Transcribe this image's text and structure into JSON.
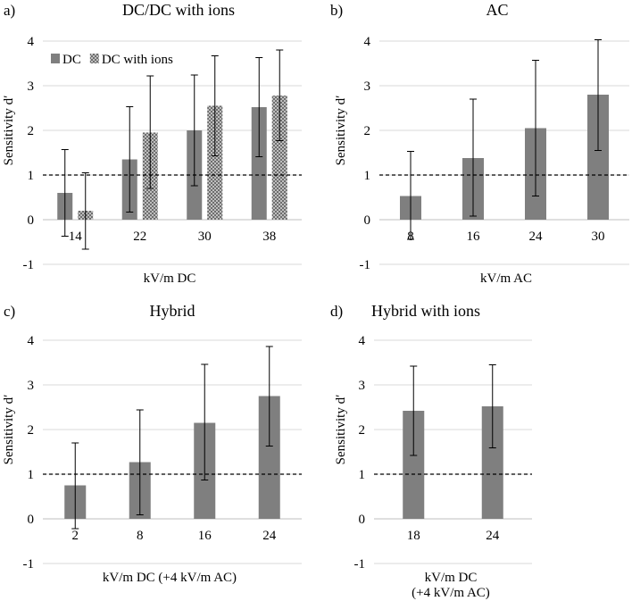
{
  "colors": {
    "bar": "#7f7f7f",
    "grid": "#d9d9d9",
    "errorbar": "#000000",
    "reference": "#000000",
    "pattern_dot": "#333333"
  },
  "chart_data": [
    {
      "id": "a",
      "letter": "a)",
      "type": "bar",
      "title": "DC/DC with ions",
      "xlabel": "kV/m DC",
      "ylabel": "Sensitivity d′",
      "categories": [
        "14",
        "22",
        "30",
        "38"
      ],
      "ylim": [
        -1,
        4
      ],
      "yticks": [
        "-1",
        "0",
        "1",
        "2",
        "3",
        "4"
      ],
      "reference_line": 1,
      "legend_position": "top-left",
      "series": [
        {
          "name": "DC",
          "pattern": "solid",
          "values": [
            0.6,
            1.35,
            2.0,
            2.52
          ],
          "err_low": [
            -0.37,
            0.17,
            0.76,
            1.41
          ],
          "err_high": [
            1.57,
            2.53,
            3.24,
            3.63
          ]
        },
        {
          "name": "DC with ions",
          "pattern": "dots",
          "values": [
            0.2,
            1.95,
            2.55,
            2.78
          ],
          "err_low": [
            -0.66,
            0.7,
            1.43,
            1.77
          ],
          "err_high": [
            1.05,
            3.22,
            3.67,
            3.8
          ]
        }
      ]
    },
    {
      "id": "b",
      "letter": "b)",
      "type": "bar",
      "title": "AC",
      "xlabel": "kV/m AC",
      "ylabel": "Sensitivity d′",
      "categories": [
        "8",
        "16",
        "24",
        "30"
      ],
      "ylim": [
        -1,
        4
      ],
      "yticks": [
        "-1",
        "0",
        "1",
        "2",
        "3",
        "4"
      ],
      "reference_line": 1,
      "series": [
        {
          "name": "AC",
          "pattern": "solid",
          "values": [
            0.53,
            1.38,
            2.05,
            2.8
          ],
          "err_low": [
            -0.44,
            0.08,
            0.53,
            1.55
          ],
          "err_high": [
            1.53,
            2.7,
            3.57,
            4.03
          ]
        }
      ]
    },
    {
      "id": "c",
      "letter": "c)",
      "type": "bar",
      "title": "Hybrid",
      "xlabel": "kV/m DC (+4 kV/m AC)",
      "ylabel": "Sensitivity d′",
      "categories": [
        "2",
        "8",
        "16",
        "24"
      ],
      "ylim": [
        -1,
        4
      ],
      "yticks": [
        "-1",
        "0",
        "1",
        "2",
        "3",
        "4"
      ],
      "reference_line": 1,
      "series": [
        {
          "name": "Hybrid",
          "pattern": "solid",
          "values": [
            0.75,
            1.27,
            2.15,
            2.75
          ],
          "err_low": [
            -0.22,
            0.09,
            0.87,
            1.63
          ],
          "err_high": [
            1.7,
            2.44,
            3.46,
            3.86
          ]
        }
      ]
    },
    {
      "id": "d",
      "letter": "d)",
      "type": "bar",
      "title": "Hybrid with ions",
      "xlabel": "kV/m DC (+4 kV/m AC)",
      "ylabel": "Sensitivity d′",
      "categories": [
        "18",
        "24"
      ],
      "ylim": [
        -1,
        4
      ],
      "yticks": [
        "-1",
        "0",
        "1",
        "2",
        "3",
        "4"
      ],
      "reference_line": 1,
      "series": [
        {
          "name": "Hybrid with ions",
          "pattern": "solid",
          "values": [
            2.42,
            2.52
          ],
          "err_low": [
            1.42,
            1.59
          ],
          "err_high": [
            3.42,
            3.45
          ]
        }
      ]
    }
  ]
}
